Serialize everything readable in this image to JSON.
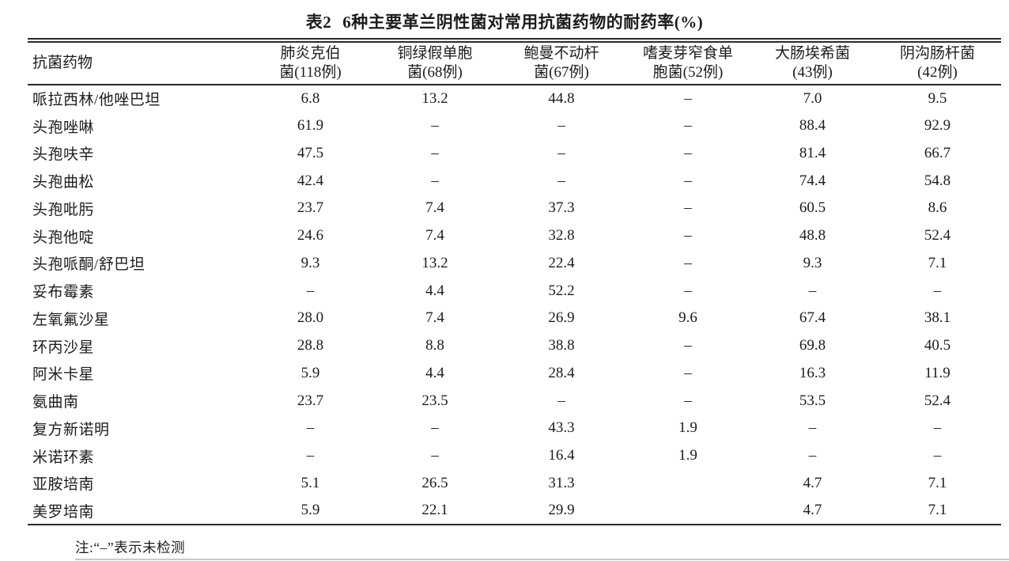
{
  "colors": {
    "background": "#ffffff",
    "text": "#1c1c1c",
    "rule": "#2b2b2b"
  },
  "table": {
    "title_label": "表2",
    "title_text": "6种主要革兰阴性菌对常用抗菌药物的耐药率(%)",
    "header": [
      {
        "lines": [
          "抗菌药物"
        ]
      },
      {
        "lines": [
          "肺炎克伯",
          "菌(118例)"
        ]
      },
      {
        "lines": [
          "铜绿假单胞",
          "菌(68例)"
        ]
      },
      {
        "lines": [
          "鲍曼不动杆",
          "菌(67例)"
        ]
      },
      {
        "lines": [
          "嗜麦芽窄食单",
          "胞菌(52例)"
        ]
      },
      {
        "lines": [
          "大肠埃希菌",
          "(43例)"
        ]
      },
      {
        "lines": [
          "阴沟肠杆菌",
          "(42例)"
        ]
      }
    ],
    "rows": [
      {
        "drug": "哌拉西林/他唑巴坦",
        "values": [
          "6.8",
          "13.2",
          "44.8",
          "–",
          "7.0",
          "9.5"
        ]
      },
      {
        "drug": "头孢唑啉",
        "values": [
          "61.9",
          "–",
          "–",
          "–",
          "88.4",
          "92.9"
        ]
      },
      {
        "drug": "头孢呋辛",
        "values": [
          "47.5",
          "–",
          "–",
          "–",
          "81.4",
          "66.7"
        ]
      },
      {
        "drug": "头孢曲松",
        "values": [
          "42.4",
          "–",
          "–",
          "–",
          "74.4",
          "54.8"
        ]
      },
      {
        "drug": "头孢吡肟",
        "values": [
          "23.7",
          "7.4",
          "37.3",
          "–",
          "60.5",
          "8.6"
        ]
      },
      {
        "drug": "头孢他啶",
        "values": [
          "24.6",
          "7.4",
          "32.8",
          "–",
          "48.8",
          "52.4"
        ]
      },
      {
        "drug": "头孢哌酮/舒巴坦",
        "values": [
          "9.3",
          "13.2",
          "22.4",
          "–",
          "9.3",
          "7.1"
        ]
      },
      {
        "drug": "妥布霉素",
        "values": [
          "–",
          "4.4",
          "52.2",
          "–",
          "–",
          "–"
        ]
      },
      {
        "drug": "左氧氟沙星",
        "values": [
          "28.0",
          "7.4",
          "26.9",
          "9.6",
          "67.4",
          "38.1"
        ]
      },
      {
        "drug": "环丙沙星",
        "values": [
          "28.8",
          "8.8",
          "38.8",
          "–",
          "69.8",
          "40.5"
        ]
      },
      {
        "drug": "阿米卡星",
        "values": [
          "5.9",
          "4.4",
          "28.4",
          "–",
          "16.3",
          "11.9"
        ]
      },
      {
        "drug": "氨曲南",
        "values": [
          "23.7",
          "23.5",
          "–",
          "–",
          "53.5",
          "52.4"
        ]
      },
      {
        "drug": "复方新诺明",
        "values": [
          "–",
          "–",
          "43.3",
          "1.9",
          "–",
          "–"
        ]
      },
      {
        "drug": "米诺环素",
        "values": [
          "–",
          "–",
          "16.4",
          "1.9",
          "–",
          "–"
        ]
      },
      {
        "drug": "亚胺培南",
        "values": [
          "5.1",
          "26.5",
          "31.3",
          "",
          "4.7",
          "7.1"
        ]
      },
      {
        "drug": "美罗培南",
        "values": [
          "5.9",
          "22.1",
          "29.9",
          "",
          "4.7",
          "7.1"
        ]
      }
    ],
    "footnote": "注:“–”表示未检测"
  },
  "chart_data": {
    "type": "table",
    "title": "表2 6种主要革兰阴性菌对常用抗菌药物的耐药率(%)",
    "columns": [
      "抗菌药物",
      "肺炎克伯菌(118例)",
      "铜绿假单胞菌(68例)",
      "鲍曼不动杆菌(67例)",
      "嗜麦芽窄食单胞菌(52例)",
      "大肠埃希菌(43例)",
      "阴沟肠杆菌(42例)"
    ],
    "rows": [
      [
        "哌拉西林/他唑巴坦",
        6.8,
        13.2,
        44.8,
        null,
        7.0,
        9.5
      ],
      [
        "头孢唑啉",
        61.9,
        null,
        null,
        null,
        88.4,
        92.9
      ],
      [
        "头孢呋辛",
        47.5,
        null,
        null,
        null,
        81.4,
        66.7
      ],
      [
        "头孢曲松",
        42.4,
        null,
        null,
        null,
        74.4,
        54.8
      ],
      [
        "头孢吡肟",
        23.7,
        7.4,
        37.3,
        null,
        60.5,
        8.6
      ],
      [
        "头孢他啶",
        24.6,
        7.4,
        32.8,
        null,
        48.8,
        52.4
      ],
      [
        "头孢哌酮/舒巴坦",
        9.3,
        13.2,
        22.4,
        null,
        9.3,
        7.1
      ],
      [
        "妥布霉素",
        null,
        4.4,
        52.2,
        null,
        null,
        null
      ],
      [
        "左氧氟沙星",
        28.0,
        7.4,
        26.9,
        9.6,
        67.4,
        38.1
      ],
      [
        "环丙沙星",
        28.8,
        8.8,
        38.8,
        null,
        69.8,
        40.5
      ],
      [
        "阿米卡星",
        5.9,
        4.4,
        28.4,
        null,
        16.3,
        11.9
      ],
      [
        "氨曲南",
        23.7,
        23.5,
        null,
        null,
        53.5,
        52.4
      ],
      [
        "复方新诺明",
        null,
        null,
        43.3,
        1.9,
        null,
        null
      ],
      [
        "米诺环素",
        null,
        null,
        16.4,
        1.9,
        null,
        null
      ],
      [
        "亚胺培南",
        5.1,
        26.5,
        31.3,
        "",
        4.7,
        7.1
      ],
      [
        "美罗培南",
        5.9,
        22.1,
        29.9,
        "",
        4.7,
        7.1
      ]
    ],
    "note": "注:“–”表示未检测 (– means not tested)"
  }
}
